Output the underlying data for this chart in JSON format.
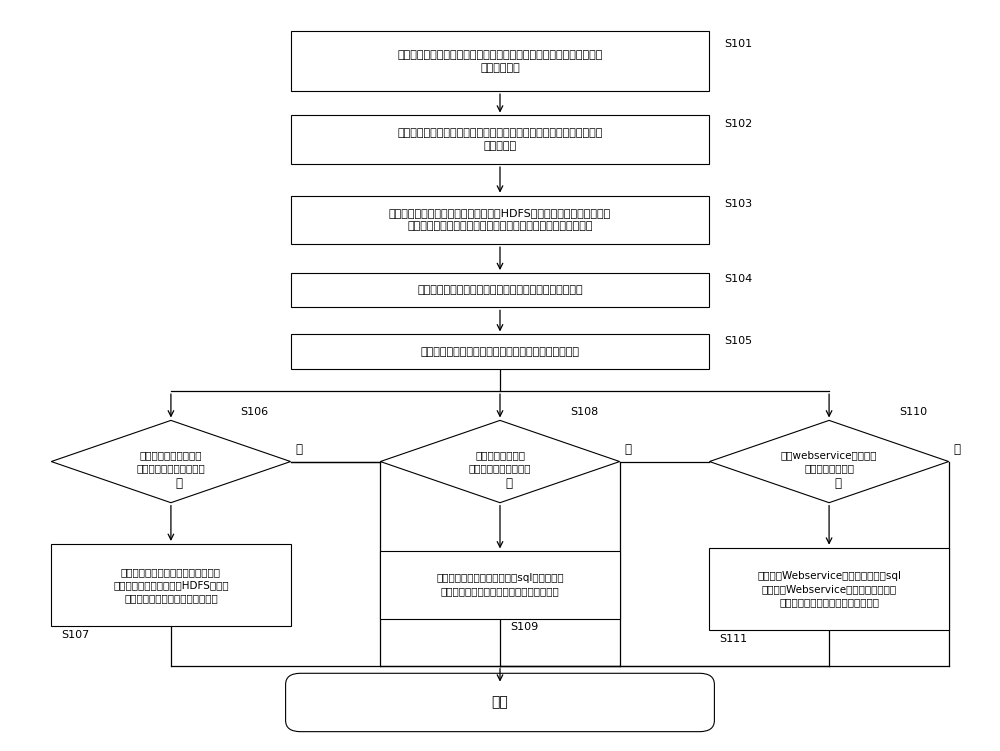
{
  "bg_color": "#ffffff",
  "line_color": "#000000",
  "text_color": "#000000",
  "font_name": "sans-serif",
  "nodes": {
    "S101_text": "根据定义的检索字段从原始数据文件中检索并收集与所述检索字段相同\n的特定关键值",
    "S102_text": "对收集到的特定关键值进行分析，计算所述原始数据文件的特定关键值\n的值域分布",
    "S103_text": "根据所述特定关键值的值域分布，结合HDFS集群中的节点数以及各节点\n存储资源使用情况确定所述原始数据文件的存储策略和拆分策略",
    "S104_text": "根据所述拆分策略将所述原始数据文件拆分为多个子文件",
    "S105_text": "根据所述存储策略将各个子文件分别存储在相应节点上",
    "S106_text": "判断原始数据文件是否\n需要与关系型数据库对接",
    "S108_text": "判断前台应用是否\n查询统计原始数据文件",
    "S110_text": "判断webservice是否需要\n访问原始数据文件",
    "S107_text": "制定开发对接元数据，通过外部表的\n方式利用多线程将存储在HDFS集群节\n点中的各个子文件并发导入数据库",
    "S109_text": "制定开发查询元数据，通过类sql方法实现前\n台应用对存储在各个节点上的子文件的查询",
    "S111_text": "制定开发Webservice元数据，通过类sql\n方法实现Webservice对存储在各个节点\n上的子文件的访问，并进行结果展示",
    "END_text": "结束",
    "yes": "是",
    "no": "否"
  }
}
